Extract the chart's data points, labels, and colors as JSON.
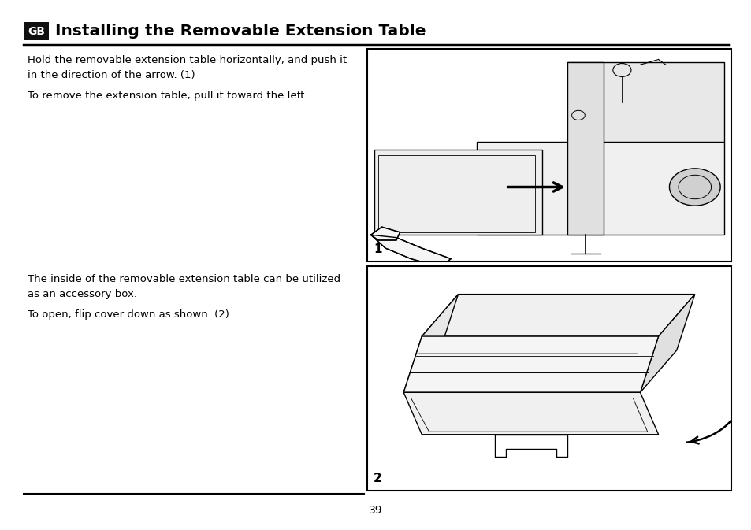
{
  "bg_color": "#ffffff",
  "page_number": "39",
  "title_box_color": "#111111",
  "title_box_text": "GB",
  "title_text": "Installing the Removable Extension Table",
  "title_fontsize": 14.5,
  "para1_text": "Hold the removable extension table horizontally, and push it\nin the direction of the arrow. (1)",
  "para2_text": "To remove the extension table, pull it toward the left.",
  "para3_text": "The inside of the removable extension table can be utilized\nas an accessory box.",
  "para4_text": "To open, flip cover down as shown. (2)",
  "body_fontsize": 9.5,
  "label1_text": "1",
  "label2_text": "2",
  "page_num_fontsize": 10
}
